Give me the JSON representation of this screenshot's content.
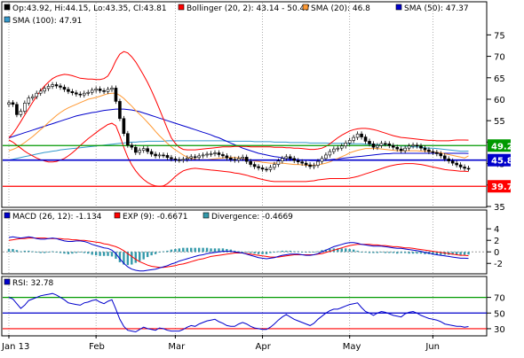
{
  "chart_data": [
    {
      "type": "candlestick",
      "panel": "price",
      "legend": [
        {
          "name": "Op:43.92, Hi:44.15, Lo:43.35, Cl:43.81",
          "color": "#000000"
        },
        {
          "name": "Bollinger (20, 2): 43.14 - 50.47",
          "color": "#ff0000"
        },
        {
          "name": "SMA (20): 46.8",
          "color": "#ff9933"
        },
        {
          "name": "SMA (50): 47.37",
          "color": "#0000cc"
        },
        {
          "name": "SMA (100): 47.91",
          "color": "#3399cc"
        }
      ],
      "ylim": [
        35,
        79
      ],
      "yticks": [
        35,
        40,
        45,
        50,
        55,
        60,
        65,
        70,
        75
      ],
      "level_lines": [
        {
          "value": 49.2,
          "label": "49.2",
          "color": "#009900"
        },
        {
          "value": 45.8,
          "label": "45.8",
          "color": "#0000cc"
        },
        {
          "value": 39.7,
          "label": "39.7",
          "color": "#ff0000"
        }
      ],
      "close": [
        59.2,
        58.8,
        56.4,
        57.2,
        59.1,
        60.3,
        60.6,
        61.4,
        61.9,
        62.5,
        63.0,
        63.4,
        63.1,
        62.8,
        62.3,
        61.8,
        61.5,
        61.2,
        61.0,
        61.4,
        61.6,
        62.1,
        62.4,
        62.0,
        61.8,
        62.3,
        62.6,
        59.5,
        55.5,
        52.0,
        49.3,
        48.8,
        47.6,
        48.1,
        48.5,
        47.8,
        47.2,
        46.8,
        47.0,
        46.9,
        46.4,
        46.1,
        45.9,
        45.8,
        46.0,
        46.3,
        46.6,
        46.4,
        46.8,
        47.0,
        47.2,
        47.3,
        47.5,
        47.1,
        46.8,
        46.3,
        46.0,
        45.8,
        46.2,
        46.5,
        45.5,
        44.8,
        44.3,
        44.0,
        43.7,
        43.6,
        44.1,
        44.8,
        45.6,
        46.2,
        46.6,
        46.2,
        45.7,
        45.4,
        45.1,
        44.7,
        44.3,
        44.6,
        45.5,
        46.2,
        47.0,
        47.8,
        48.4,
        48.6,
        49.1,
        49.8,
        50.4,
        51.1,
        51.9,
        51.2,
        50.2,
        49.6,
        48.8,
        49.2,
        49.7,
        49.6,
        49.2,
        48.8,
        48.4,
        48.0,
        48.6,
        49.1,
        49.3,
        49.1,
        48.6,
        48.2,
        47.8,
        47.6,
        47.3,
        46.8,
        46.1,
        45.6,
        45.1,
        44.7,
        44.2,
        43.9,
        43.81
      ],
      "sma20": [
        48.0,
        48.3,
        48.7,
        49.3,
        49.9,
        50.6,
        51.3,
        52.1,
        52.9,
        53.7,
        54.6,
        55.4,
        56.2,
        56.9,
        57.5,
        58.0,
        58.4,
        58.8,
        59.2,
        59.6,
        60.0,
        60.2,
        60.4,
        60.7,
        61.0,
        61.3,
        61.4,
        61.4,
        60.9,
        60.2,
        59.3,
        58.4,
        57.4,
        56.5,
        55.6,
        54.6,
        53.6,
        52.5,
        51.5,
        50.6,
        49.7,
        48.9,
        48.2,
        47.6,
        47.0,
        46.5,
        46.2,
        46.0,
        45.9,
        45.9,
        45.9,
        46.0,
        46.1,
        46.2,
        46.3,
        46.4,
        46.4,
        46.4,
        46.3,
        46.2,
        46.0,
        45.8,
        45.6,
        45.5,
        45.3,
        45.2,
        45.1,
        45.1,
        45.1,
        45.1,
        45.0,
        44.9,
        44.8,
        44.8,
        44.7,
        44.6,
        44.6,
        44.6,
        44.7,
        44.9,
        45.1,
        45.4,
        45.8,
        46.2,
        46.6,
        47.0,
        47.5,
        47.8,
        48.1,
        48.3,
        48.5,
        48.5,
        48.5,
        48.5,
        48.4,
        48.3,
        48.2,
        48.1,
        48.0,
        48.0,
        48.0,
        48.0,
        48.0,
        48.0,
        47.9,
        47.9,
        47.8,
        47.7,
        47.6,
        47.5,
        47.3,
        47.1,
        46.9,
        46.7,
        46.5,
        46.3,
        46.8
      ],
      "sma50": [
        51.0,
        51.3,
        51.6,
        51.9,
        52.2,
        52.5,
        52.8,
        53.1,
        53.4,
        53.7,
        54.0,
        54.3,
        54.6,
        54.9,
        55.2,
        55.5,
        55.8,
        56.1,
        56.3,
        56.5,
        56.7,
        56.9,
        57.0,
        57.2,
        57.4,
        57.5,
        57.6,
        57.7,
        57.7,
        57.7,
        57.6,
        57.5,
        57.3,
        57.1,
        56.8,
        56.5,
        56.2,
        55.9,
        55.6,
        55.3,
        55.0,
        54.7,
        54.4,
        54.1,
        53.8,
        53.5,
        53.2,
        52.9,
        52.6,
        52.3,
        52.0,
        51.7,
        51.3,
        51.0,
        50.6,
        50.2,
        49.8,
        49.4,
        49.0,
        48.6,
        48.3,
        48.0,
        47.7,
        47.4,
        47.2,
        47.0,
        46.8,
        46.6,
        46.5,
        46.3,
        46.2,
        46.1,
        46.0,
        45.9,
        45.8,
        45.8,
        45.7,
        45.7,
        45.7,
        45.7,
        45.8,
        45.9,
        46.0,
        46.1,
        46.2,
        46.3,
        46.4,
        46.5,
        46.6,
        46.7,
        46.8,
        46.9,
        47.0,
        47.1,
        47.2,
        47.3,
        47.3,
        47.4,
        47.4,
        47.4,
        47.4,
        47.4,
        47.4,
        47.4,
        47.4,
        47.4,
        47.4,
        47.4,
        47.4,
        47.4,
        47.4,
        47.4,
        47.4,
        47.4,
        47.4,
        47.4,
        47.37
      ],
      "sma100": [
        45.8,
        46.0,
        46.2,
        46.4,
        46.6,
        46.8,
        47.0,
        47.2,
        47.4,
        47.6,
        47.7,
        47.9,
        48.0,
        48.2,
        48.3,
        48.4,
        48.5,
        48.6,
        48.7,
        48.8,
        48.9,
        49.0,
        49.1,
        49.2,
        49.3,
        49.4,
        49.5,
        49.6,
        49.7,
        49.8,
        49.9,
        50.0,
        50.0,
        50.1,
        50.1,
        50.2,
        50.2,
        50.2,
        50.2,
        50.2,
        50.3,
        50.3,
        50.3,
        50.3,
        50.3,
        50.3,
        50.3,
        50.3,
        50.3,
        50.3,
        50.3,
        50.3,
        50.3,
        50.3,
        50.3,
        50.2,
        50.2,
        50.2,
        50.2,
        50.2,
        50.2,
        50.2,
        50.1,
        50.1,
        50.1,
        50.1,
        50.1,
        50.0,
        50.0,
        50.0,
        50.0,
        49.9,
        49.9,
        49.9,
        49.9,
        49.9,
        49.8,
        49.8,
        49.8,
        49.8,
        49.8,
        49.7,
        49.7,
        49.7,
        49.7,
        49.7,
        49.6,
        49.6,
        49.6,
        49.6,
        49.5,
        49.5,
        49.5,
        49.4,
        49.4,
        49.3,
        49.3,
        49.2,
        49.2,
        49.1,
        49.1,
        49.0,
        48.9,
        48.9,
        48.8,
        48.7,
        48.6,
        48.6,
        48.5,
        48.4,
        48.3,
        48.2,
        48.1,
        48.0,
        47.9,
        47.9,
        47.91
      ],
      "boll_upper": [
        51.0,
        52.0,
        53.3,
        54.8,
        56.3,
        57.8,
        59.3,
        60.7,
        62.0,
        63.1,
        64.0,
        64.8,
        65.3,
        65.6,
        65.8,
        65.7,
        65.5,
        65.2,
        64.9,
        64.8,
        64.7,
        64.7,
        64.6,
        64.6,
        64.8,
        65.4,
        67.0,
        69.0,
        70.5,
        71.1,
        70.8,
        69.9,
        68.7,
        67.2,
        65.6,
        63.9,
        62.0,
        59.9,
        57.7,
        55.4,
        53.1,
        51.0,
        49.7,
        48.8,
        48.3,
        48.2,
        48.2,
        48.2,
        48.3,
        48.4,
        48.5,
        48.6,
        48.7,
        48.8,
        48.9,
        48.9,
        48.9,
        49.0,
        49.0,
        49.0,
        49.0,
        48.9,
        48.9,
        48.9,
        48.9,
        48.9,
        48.9,
        48.8,
        48.8,
        48.8,
        48.7,
        48.7,
        48.6,
        48.6,
        48.5,
        48.4,
        48.3,
        48.3,
        48.4,
        48.6,
        49.0,
        49.6,
        50.3,
        51.0,
        51.6,
        52.1,
        52.6,
        52.9,
        53.1,
        53.2,
        53.2,
        53.1,
        52.9,
        52.7,
        52.4,
        52.1,
        51.8,
        51.5,
        51.3,
        51.1,
        51.0,
        50.9,
        50.8,
        50.7,
        50.6,
        50.5,
        50.4,
        50.4,
        50.3,
        50.3,
        50.3,
        50.3,
        50.4,
        50.5,
        50.5,
        50.5,
        50.47
      ],
      "boll_lower": [
        50.5,
        50.0,
        49.3,
        48.6,
        47.9,
        47.3,
        46.8,
        46.3,
        45.9,
        45.6,
        45.4,
        45.4,
        45.5,
        45.8,
        46.2,
        46.8,
        47.5,
        48.3,
        49.2,
        50.0,
        50.8,
        51.5,
        52.2,
        52.9,
        53.5,
        54.1,
        54.4,
        53.8,
        51.5,
        48.8,
        46.5,
        44.7,
        43.3,
        42.2,
        41.3,
        40.6,
        40.1,
        39.8,
        39.7,
        39.8,
        40.3,
        41.1,
        42.0,
        42.7,
        43.3,
        43.6,
        43.8,
        43.9,
        43.8,
        43.7,
        43.6,
        43.5,
        43.4,
        43.3,
        43.2,
        43.1,
        43.0,
        42.8,
        42.7,
        42.5,
        42.3,
        42.0,
        41.8,
        41.5,
        41.3,
        41.1,
        40.9,
        40.8,
        40.8,
        40.8,
        40.8,
        40.8,
        40.8,
        40.8,
        40.8,
        40.8,
        40.9,
        41.0,
        41.2,
        41.3,
        41.4,
        41.5,
        41.5,
        41.5,
        41.5,
        41.5,
        41.6,
        41.8,
        42.0,
        42.3,
        42.6,
        42.9,
        43.2,
        43.5,
        43.8,
        44.1,
        44.4,
        44.6,
        44.8,
        44.9,
        45.0,
        45.0,
        45.0,
        44.9,
        44.8,
        44.6,
        44.4,
        44.2,
        44.0,
        43.8,
        43.6,
        43.5,
        43.4,
        43.3,
        43.2,
        43.2,
        43.14
      ]
    },
    {
      "type": "line",
      "panel": "macd",
      "legend": [
        {
          "name": "MACD (26, 12): -1.134",
          "color": "#0000cc"
        },
        {
          "name": "EXP (9): -0.6671",
          "color": "#ff0000"
        },
        {
          "name": "Divergence: -0.4669",
          "color": "#3399aa"
        }
      ],
      "ylim": [
        -3.5,
        4.8
      ],
      "yticks": [
        4,
        2,
        0,
        -2
      ],
      "zero_line": 0,
      "macd": [
        2.5,
        2.6,
        2.5,
        2.4,
        2.5,
        2.6,
        2.5,
        2.3,
        2.2,
        2.2,
        2.3,
        2.4,
        2.3,
        2.1,
        1.9,
        1.8,
        1.8,
        1.9,
        1.9,
        1.8,
        1.6,
        1.3,
        1.1,
        0.9,
        0.7,
        0.6,
        0.3,
        -0.3,
        -1.2,
        -2.0,
        -2.6,
        -3.0,
        -3.2,
        -3.3,
        -3.3,
        -3.2,
        -3.1,
        -3.0,
        -2.8,
        -2.6,
        -2.4,
        -2.1,
        -1.9,
        -1.6,
        -1.4,
        -1.2,
        -1.0,
        -0.8,
        -0.6,
        -0.5,
        -0.3,
        -0.2,
        -0.1,
        0.0,
        0.1,
        0.1,
        0.1,
        0.0,
        -0.1,
        -0.2,
        -0.4,
        -0.6,
        -0.8,
        -1.0,
        -1.1,
        -1.2,
        -1.1,
        -1.0,
        -0.8,
        -0.6,
        -0.5,
        -0.4,
        -0.4,
        -0.4,
        -0.5,
        -0.6,
        -0.6,
        -0.5,
        -0.3,
        0.0,
        0.3,
        0.6,
        0.9,
        1.1,
        1.3,
        1.5,
        1.6,
        1.6,
        1.5,
        1.3,
        1.2,
        1.1,
        1.0,
        1.0,
        1.0,
        0.9,
        0.8,
        0.7,
        0.6,
        0.6,
        0.5,
        0.4,
        0.3,
        0.2,
        0.1,
        -0.1,
        -0.2,
        -0.4,
        -0.5,
        -0.6,
        -0.7,
        -0.8,
        -0.9,
        -1.0,
        -1.1,
        -1.1,
        -1.134
      ],
      "signal": [
        2.0,
        2.1,
        2.2,
        2.3,
        2.3,
        2.4,
        2.4,
        2.4,
        2.4,
        2.4,
        2.3,
        2.3,
        2.3,
        2.3,
        2.2,
        2.2,
        2.1,
        2.1,
        2.0,
        2.0,
        1.9,
        1.8,
        1.7,
        1.6,
        1.4,
        1.3,
        1.1,
        0.9,
        0.6,
        0.2,
        -0.3,
        -0.8,
        -1.3,
        -1.7,
        -2.0,
        -2.3,
        -2.5,
        -2.6,
        -2.7,
        -2.7,
        -2.6,
        -2.5,
        -2.4,
        -2.2,
        -2.1,
        -1.9,
        -1.7,
        -1.5,
        -1.3,
        -1.2,
        -1.0,
        -0.8,
        -0.7,
        -0.6,
        -0.5,
        -0.4,
        -0.3,
        -0.2,
        -0.2,
        -0.2,
        -0.3,
        -0.4,
        -0.5,
        -0.6,
        -0.7,
        -0.8,
        -0.9,
        -0.9,
        -0.9,
        -0.8,
        -0.7,
        -0.6,
        -0.5,
        -0.5,
        -0.5,
        -0.5,
        -0.5,
        -0.5,
        -0.4,
        -0.3,
        -0.1,
        0.1,
        0.3,
        0.5,
        0.7,
        0.9,
        1.1,
        1.2,
        1.3,
        1.3,
        1.3,
        1.3,
        1.2,
        1.2,
        1.1,
        1.1,
        1.0,
        0.9,
        0.9,
        0.8,
        0.7,
        0.7,
        0.6,
        0.5,
        0.4,
        0.3,
        0.2,
        0.1,
        0.0,
        -0.1,
        -0.2,
        -0.3,
        -0.4,
        -0.5,
        -0.6,
        -0.6,
        -0.6671
      ]
    },
    {
      "type": "line",
      "panel": "rsi",
      "legend": [
        {
          "name": "RSI: 32.78",
          "color": "#0000cc"
        }
      ],
      "ylim": [
        22,
        82
      ],
      "yticks": [
        70,
        50,
        30
      ],
      "level_lines": [
        {
          "value": 70,
          "color": "#009900"
        },
        {
          "value": 50,
          "color": "#0000cc"
        },
        {
          "value": 30,
          "color": "#ff0000"
        }
      ],
      "rsi": [
        70,
        68,
        62,
        56,
        60,
        66,
        68,
        70,
        72,
        73,
        74,
        75,
        73,
        70,
        67,
        63,
        62,
        61,
        60,
        63,
        64,
        66,
        67,
        64,
        62,
        65,
        67,
        55,
        42,
        33,
        28,
        27,
        26,
        29,
        32,
        30,
        29,
        28,
        31,
        30,
        28,
        27,
        27,
        27,
        29,
        32,
        34,
        33,
        36,
        38,
        40,
        41,
        42,
        39,
        37,
        34,
        33,
        33,
        36,
        38,
        36,
        33,
        31,
        30,
        29,
        29,
        32,
        36,
        41,
        45,
        48,
        45,
        42,
        40,
        38,
        36,
        34,
        37,
        42,
        46,
        50,
        53,
        55,
        55,
        57,
        59,
        61,
        62,
        63,
        57,
        52,
        50,
        47,
        50,
        52,
        51,
        49,
        47,
        46,
        45,
        49,
        51,
        52,
        50,
        47,
        45,
        43,
        42,
        41,
        39,
        36,
        35,
        34,
        33,
        33,
        32,
        32.78
      ]
    }
  ],
  "x_axis": {
    "labels": [
      "Jan 13",
      "Feb",
      "Mar",
      "Apr",
      "May",
      "Jun"
    ]
  },
  "colors": {
    "candle_up": "#ffffff",
    "candle_down": "#000000",
    "grid": "#999999",
    "axis": "#000000"
  }
}
